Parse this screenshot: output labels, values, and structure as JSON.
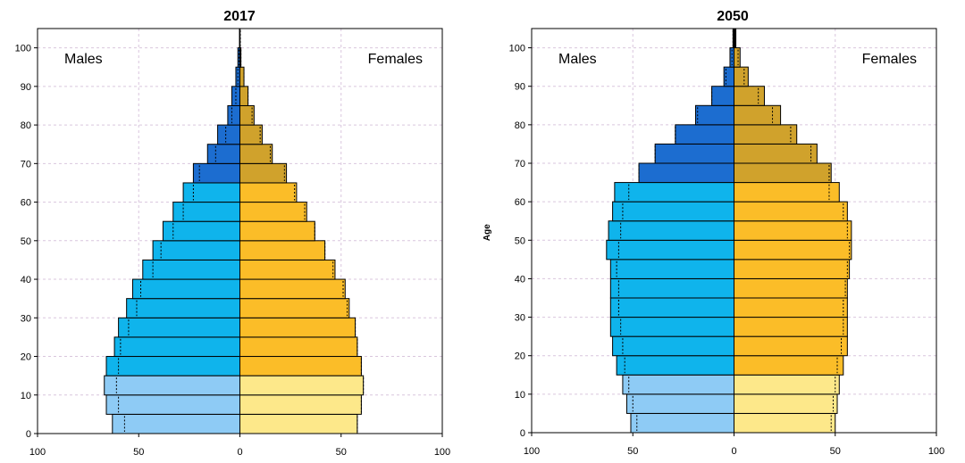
{
  "chart_data": [
    {
      "type": "bar",
      "title": "2017",
      "ylabel": "",
      "xlabel": "",
      "left_label": "Males",
      "right_label": "Females",
      "ylim": [
        0,
        105
      ],
      "xlim": [
        -100,
        100
      ],
      "yticks": [
        0,
        10,
        20,
        30,
        40,
        50,
        60,
        70,
        80,
        90,
        100
      ],
      "xticks": [
        -100,
        -50,
        0,
        50,
        100
      ],
      "xtick_labels": [
        "100",
        "50",
        "0",
        "50",
        "100"
      ],
      "grid": true,
      "age_groups": [
        "0-4",
        "5-9",
        "10-14",
        "15-19",
        "20-24",
        "25-29",
        "30-34",
        "35-39",
        "40-44",
        "45-49",
        "50-54",
        "55-59",
        "60-64",
        "65-69",
        "70-74",
        "75-79",
        "80-84",
        "85-89",
        "90-94",
        "95-99",
        "100+"
      ],
      "males": [
        63,
        66,
        67,
        66,
        62,
        60,
        56,
        53,
        48,
        43,
        38,
        33,
        28,
        23,
        16,
        11,
        6,
        4,
        2,
        1,
        0.3
      ],
      "females": [
        58,
        60,
        61,
        60,
        58,
        57,
        54,
        52,
        47,
        42,
        37,
        33,
        28,
        23,
        16,
        11,
        7,
        4,
        2,
        0.5,
        0.2
      ],
      "males_ref": [
        57,
        60,
        61,
        60,
        59,
        55,
        51,
        49,
        43,
        39,
        33,
        28,
        23,
        20,
        12,
        7,
        4,
        2,
        1,
        0.5,
        0.2
      ],
      "females_ref": [
        58,
        60,
        61,
        60,
        58,
        57,
        53,
        51,
        46,
        42,
        37,
        32,
        27,
        22,
        15,
        10,
        6,
        4,
        2,
        0.5,
        0.2
      ]
    },
    {
      "type": "bar",
      "title": "2050",
      "ylabel": "Age",
      "xlabel": "",
      "left_label": "Males",
      "right_label": "Females",
      "ylim": [
        0,
        105
      ],
      "xlim": [
        -100,
        100
      ],
      "yticks": [
        0,
        10,
        20,
        30,
        40,
        50,
        60,
        70,
        80,
        90,
        100
      ],
      "xticks": [
        -100,
        -50,
        0,
        50,
        100
      ],
      "xtick_labels": [
        "100",
        "50",
        "0",
        "50",
        "100"
      ],
      "grid": true,
      "age_groups": [
        "0-4",
        "5-9",
        "10-14",
        "15-19",
        "20-24",
        "25-29",
        "30-34",
        "35-39",
        "40-44",
        "45-49",
        "50-54",
        "55-59",
        "60-64",
        "65-69",
        "70-74",
        "75-79",
        "80-84",
        "85-89",
        "90-94",
        "95-99",
        "100+"
      ],
      "males": [
        51,
        53,
        55,
        58,
        60,
        61,
        61,
        61,
        61,
        63,
        62,
        60,
        59,
        47,
        39,
        29,
        19,
        11,
        5,
        2,
        0.6
      ],
      "females": [
        50,
        51,
        52,
        54,
        56,
        56,
        56,
        56,
        57,
        58,
        58,
        56,
        52,
        48,
        41,
        31,
        23,
        15,
        7,
        3,
        1
      ],
      "males_ref": [
        48,
        50,
        52,
        54,
        55,
        56,
        57,
        57,
        58,
        57,
        56,
        55,
        52,
        47,
        39,
        29,
        18,
        11,
        4,
        1,
        0.5
      ],
      "females_ref": [
        48,
        49,
        50,
        51,
        53,
        54,
        54,
        55,
        56,
        57,
        56,
        54,
        47,
        47,
        38,
        28,
        19,
        12,
        5,
        2,
        0.8
      ]
    }
  ],
  "colors": {
    "male_young": "#8ecbf5",
    "male_working": "#0fb4ec",
    "male_old": "#1c6dd0",
    "female_young": "#fde88a",
    "female_working": "#fbbd28",
    "female_old": "#d0a22c",
    "bar_edge": "#000000",
    "grid": "#d9c6dd",
    "axis": "#000000"
  }
}
